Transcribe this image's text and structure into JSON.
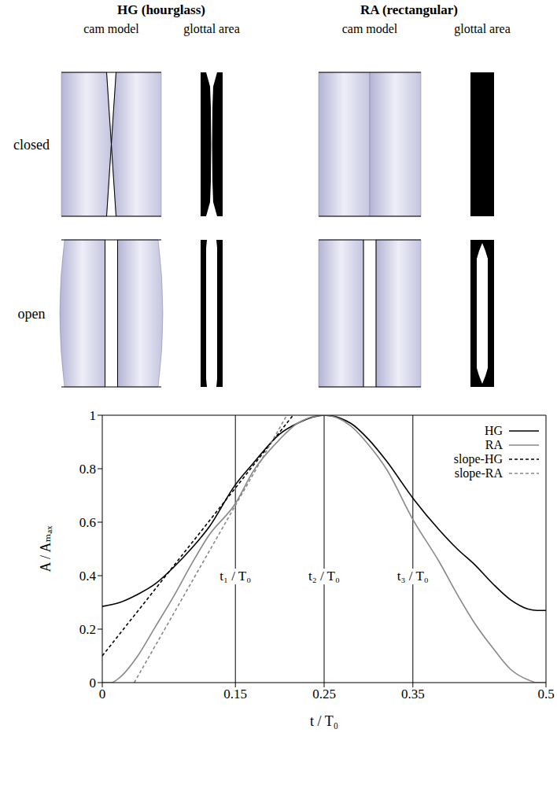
{
  "diagram": {
    "columns": [
      {
        "title": "HG (hourglass)",
        "subtitles": [
          "cam model",
          "glottal area"
        ]
      },
      {
        "title": "RA (rectangular)",
        "subtitles": [
          "cam model",
          "glottal area"
        ]
      }
    ],
    "rows": [
      "closed",
      "open"
    ]
  },
  "chart_data": {
    "type": "line",
    "xlabel": "t / T₀",
    "ylabel": "A / Aₘₐₓ",
    "xlim": [
      0,
      0.5
    ],
    "ylim": [
      0,
      1
    ],
    "xticks": [
      0,
      0.15,
      0.25,
      0.35,
      0.5
    ],
    "yticks": [
      0,
      0.2,
      0.4,
      0.6,
      0.8,
      1
    ],
    "legend": "top right",
    "series": [
      {
        "name": "HG",
        "color": "#000000",
        "line_style": "solid",
        "x": [
          0,
          0.02,
          0.04,
          0.06,
          0.08,
          0.1,
          0.12,
          0.15,
          0.17,
          0.2,
          0.22,
          0.25,
          0.28,
          0.3,
          0.32,
          0.35,
          0.38,
          0.4,
          0.42,
          0.44,
          0.46,
          0.48,
          0.49,
          0.5
        ],
        "values": [
          0.285,
          0.3,
          0.33,
          0.37,
          0.43,
          0.5,
          0.58,
          0.74,
          0.82,
          0.93,
          0.97,
          1.0,
          0.97,
          0.91,
          0.83,
          0.69,
          0.57,
          0.5,
          0.44,
          0.37,
          0.31,
          0.275,
          0.27,
          0.27
        ]
      },
      {
        "name": "RA",
        "color": "#888888",
        "line_style": "solid",
        "x": [
          0,
          0.01,
          0.02,
          0.04,
          0.06,
          0.08,
          0.1,
          0.12,
          0.15,
          0.17,
          0.2,
          0.22,
          0.25,
          0.28,
          0.3,
          0.32,
          0.35,
          0.38,
          0.4,
          0.42,
          0.44,
          0.46,
          0.48,
          0.49,
          0.5
        ],
        "values": [
          0,
          0,
          0.02,
          0.1,
          0.21,
          0.32,
          0.44,
          0.55,
          0.67,
          0.79,
          0.91,
          0.97,
          1.0,
          0.96,
          0.89,
          0.8,
          0.61,
          0.45,
          0.33,
          0.22,
          0.13,
          0.05,
          0.01,
          0,
          0
        ]
      },
      {
        "name": "slope-HG",
        "color": "#000000",
        "line_style": "dashed",
        "x": [
          0,
          0.215
        ],
        "values": [
          0.1,
          1.0
        ]
      },
      {
        "name": "slope-RA",
        "color": "#888888",
        "line_style": "dashed",
        "x": [
          0.036,
          0.208
        ],
        "values": [
          0,
          1.0
        ]
      }
    ],
    "annotations": [
      {
        "x": 0.15,
        "label": "t₁ / T₀"
      },
      {
        "x": 0.25,
        "label": "t₂ / T₀"
      },
      {
        "x": 0.35,
        "label": "t₃ / T₀"
      }
    ]
  }
}
